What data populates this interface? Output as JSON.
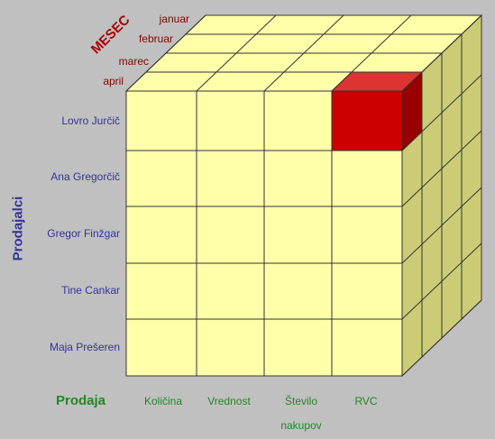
{
  "months_axis": {
    "title": "MESEC",
    "labels": [
      "januar",
      "februar",
      "marec",
      "april"
    ]
  },
  "sellers_axis": {
    "title": "Prodajalci",
    "labels": [
      "Lovro Jurčič",
      "Ana Gregorčič",
      "Gregor Finžgar",
      "Tine Cankar",
      "Maja Prešeren"
    ]
  },
  "measures_axis": {
    "title": "Prodaja",
    "labels": [
      "Količina",
      "Vrednost",
      "Število nakupov",
      "RVC"
    ]
  }
}
